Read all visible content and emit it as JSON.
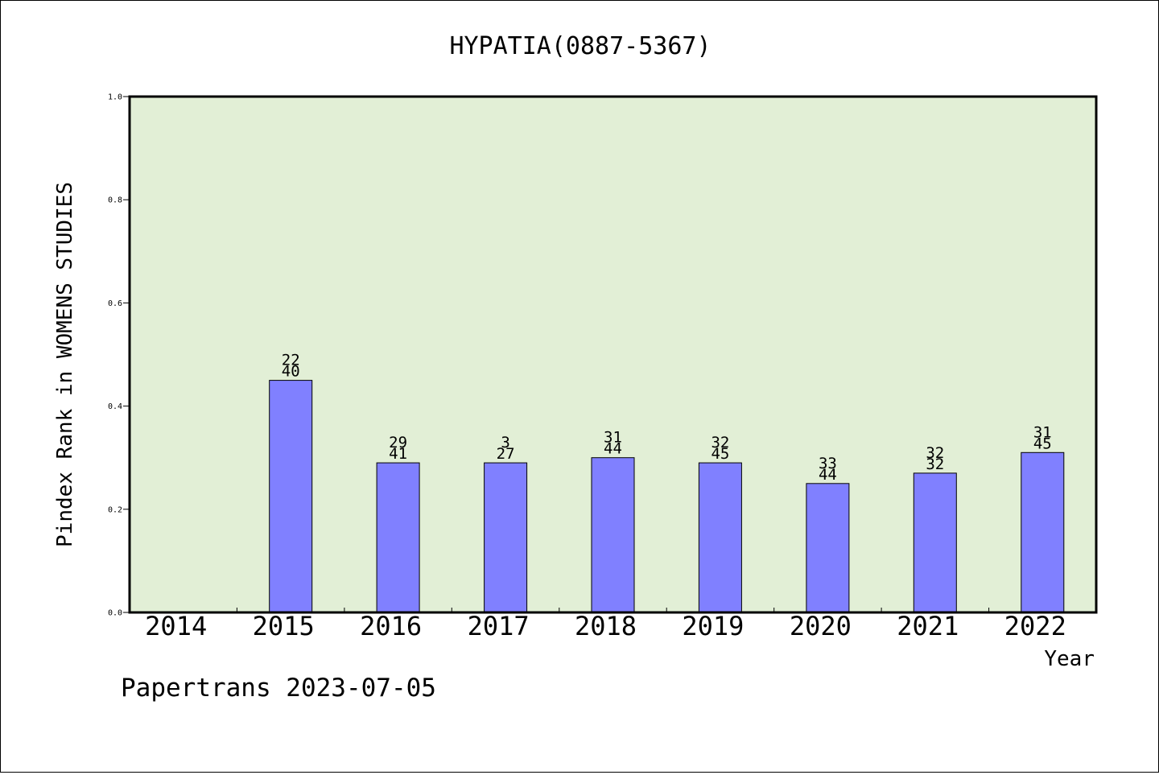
{
  "chart_data": {
    "type": "bar",
    "title": "HYPATIA(0887-5367)",
    "xlabel": "Year",
    "ylabel": "Pindex Rank in WOMENS STUDIES",
    "categories": [
      "2014",
      "2015",
      "2016",
      "2017",
      "2018",
      "2019",
      "2020",
      "2021",
      "2022"
    ],
    "values": [
      null,
      0.45,
      0.29,
      0.29,
      0.3,
      0.29,
      0.25,
      0.27,
      0.31
    ],
    "labels_top": [
      "",
      "22",
      "29",
      "3",
      "31",
      "32",
      "33",
      "32",
      "31"
    ],
    "labels_bottom": [
      "",
      "40",
      "41",
      "27",
      "44",
      "45",
      "44",
      "32",
      "45"
    ],
    "ylim": [
      0,
      1.0
    ],
    "yticks": [
      "0.0",
      "0.2",
      "0.4",
      "0.6",
      "0.8",
      "1.0"
    ],
    "grid": false,
    "plot_background": "#e2efd6",
    "bar_color": "#8080ff"
  },
  "footer": "Papertrans 2023-07-05"
}
